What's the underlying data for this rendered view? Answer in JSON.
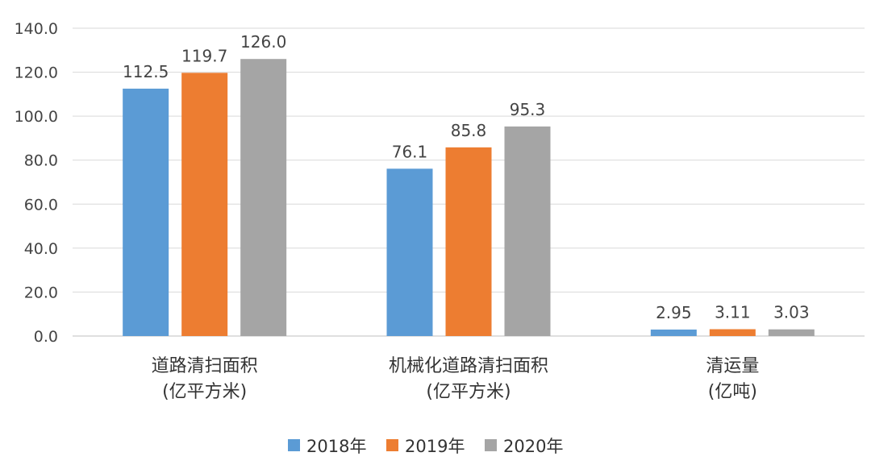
{
  "chart_data": {
    "type": "bar",
    "categories": [
      [
        "道路清扫面积",
        "(亿平方米)"
      ],
      [
        "机械化道路清扫面积",
        "(亿平方米)"
      ],
      [
        "清运量",
        "(亿吨)"
      ]
    ],
    "series": [
      {
        "name": "2018年",
        "color": "#5b9bd5",
        "values": [
          112.5,
          76.1,
          2.95
        ],
        "labels": [
          "112.5",
          "76.1",
          "2.95"
        ]
      },
      {
        "name": "2019年",
        "color": "#ed7d31",
        "values": [
          119.7,
          85.8,
          3.11
        ],
        "labels": [
          "119.7",
          "85.8",
          "3.11"
        ]
      },
      {
        "name": "2020年",
        "color": "#a5a5a5",
        "values": [
          126.0,
          95.3,
          3.03
        ],
        "labels": [
          "126.0",
          "95.3",
          "3.03"
        ]
      }
    ],
    "ylim": [
      0,
      140
    ],
    "yticks": [
      "0.0",
      "20.0",
      "40.0",
      "60.0",
      "80.0",
      "100.0",
      "120.0",
      "140.0"
    ],
    "grid": true,
    "legend": "bottom"
  }
}
